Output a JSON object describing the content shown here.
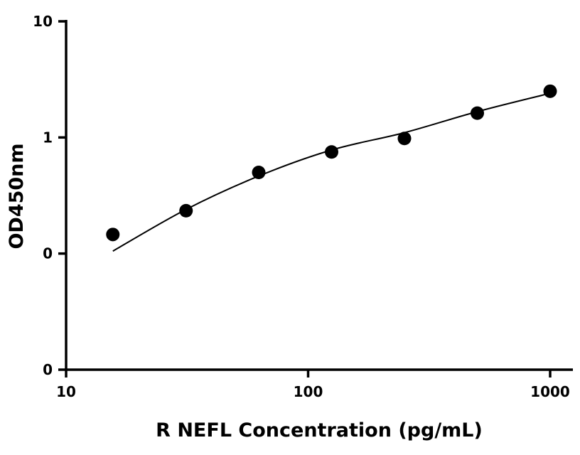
{
  "chart_data": {
    "type": "scatter",
    "title": "",
    "xlabel": "R NEFL Concentration (pg/mL)",
    "ylabel": "OD450nm",
    "x_scale": "log",
    "y_scale": "log",
    "xlim": [
      10,
      1200
    ],
    "ylim": [
      0.01,
      10
    ],
    "x_ticks": [
      10,
      100,
      1000
    ],
    "x_tick_labels": [
      "10",
      "100",
      "1000"
    ],
    "y_ticks": [
      0.01,
      0.1,
      1,
      10
    ],
    "y_tick_labels": [
      "0",
      "0",
      "1",
      "10"
    ],
    "grid": false,
    "legend": "none",
    "series": [
      {
        "x": [
          15.6,
          31.3,
          62.5,
          125,
          250,
          500,
          1000
        ],
        "y": [
          0.146,
          0.234,
          0.5,
          0.75,
          0.98,
          1.62,
          2.5
        ]
      }
    ],
    "fit_curve": {
      "type": "smooth",
      "x": [
        15.6,
        31.3,
        62.5,
        125,
        250,
        500,
        1000
      ],
      "y": [
        0.105,
        0.24,
        0.465,
        0.78,
        1.1,
        1.67,
        2.4
      ]
    }
  }
}
